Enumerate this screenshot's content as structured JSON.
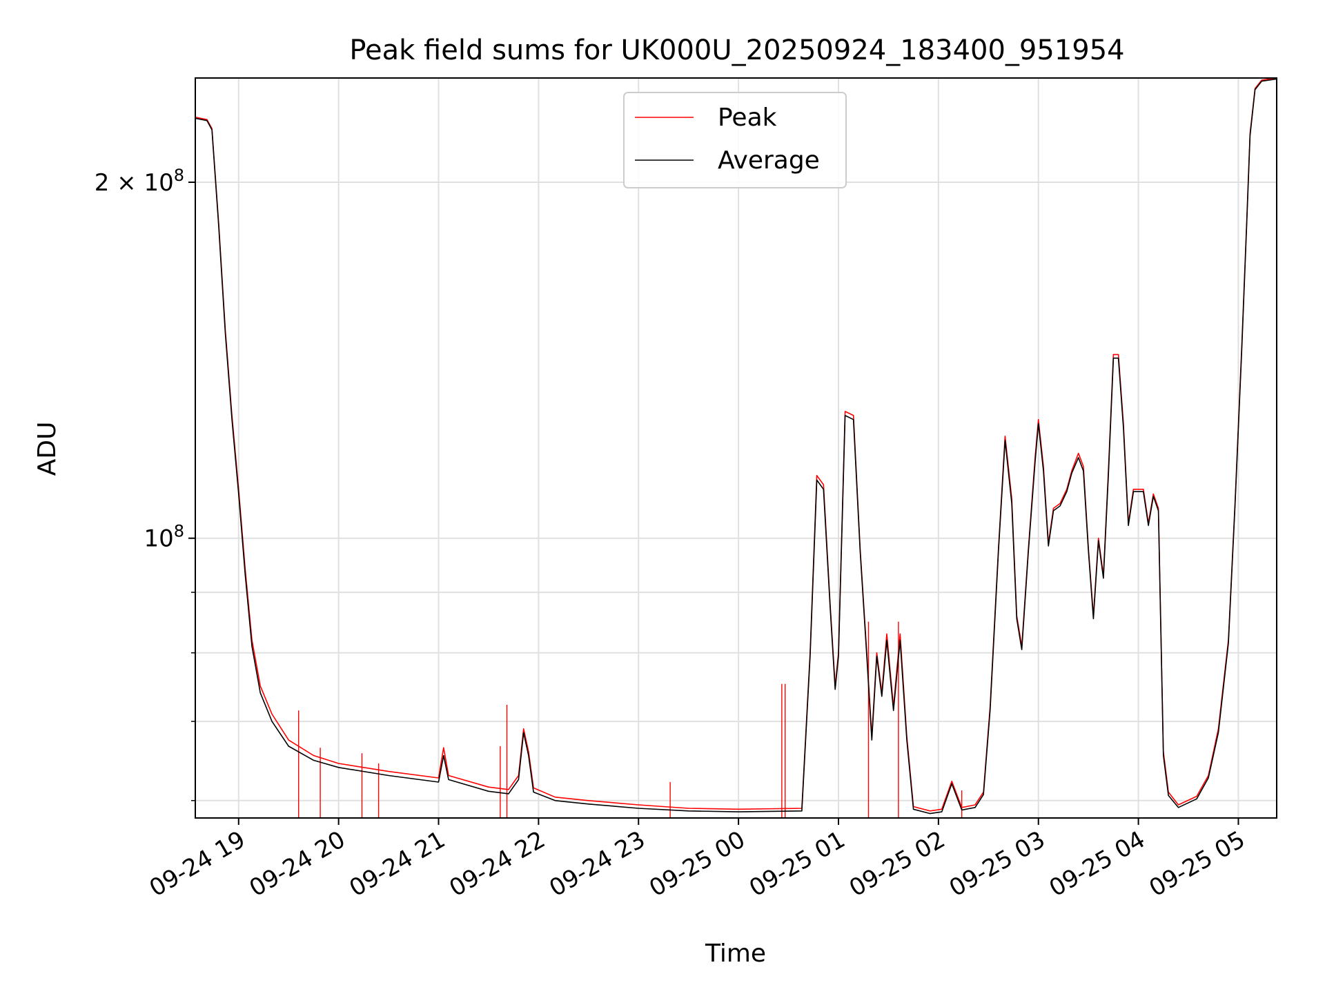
{
  "chart_data": {
    "type": "line",
    "title": "Peak field sums for UK000U_20250924_183400_951954",
    "xlabel": "Time",
    "ylabel": "ADU",
    "y_scale": "log",
    "grid": true,
    "legend_position": "upper center",
    "x_tick_labels": [
      "09-24 19",
      "09-24 20",
      "09-24 21",
      "09-24 22",
      "09-24 23",
      "09-25 00",
      "09-25 01",
      "09-25 02",
      "09-25 03",
      "09-25 04",
      "09-25 05"
    ],
    "x_tick_times": [
      "2025-09-24 19:00",
      "2025-09-24 20:00",
      "2025-09-24 21:00",
      "2025-09-24 22:00",
      "2025-09-24 23:00",
      "2025-09-25 00:00",
      "2025-09-25 01:00",
      "2025-09-25 02:00",
      "2025-09-25 03:00",
      "2025-09-25 04:00",
      "2025-09-25 05:00"
    ],
    "xlim": [
      "2025-09-24 18:34",
      "2025-09-25 05:23"
    ],
    "ylim": [
      58000000,
      245000000
    ],
    "y_major_ticks": [
      {
        "value": 100000000,
        "mantissa": "",
        "base": "10",
        "exp": "8"
      },
      {
        "value": 200000000,
        "mantissa": "2 × ",
        "base": "10",
        "exp": "8"
      }
    ],
    "y_minor_ticks": [
      60000000,
      70000000,
      80000000,
      90000000
    ],
    "series": [
      {
        "name": "Peak",
        "color": "#ff0000",
        "points": [
          [
            "2025-09-24 18:34",
            227000000
          ],
          [
            "2025-09-24 18:41",
            226000000
          ],
          [
            "2025-09-24 18:44",
            222000000
          ],
          [
            "2025-09-24 18:48",
            185000000
          ],
          [
            "2025-09-24 18:52",
            150000000
          ],
          [
            "2025-09-24 18:56",
            127000000
          ],
          [
            "2025-09-24 19:00",
            110000000
          ],
          [
            "2025-09-24 19:04",
            94000000
          ],
          [
            "2025-09-24 19:08",
            82000000
          ],
          [
            "2025-09-24 19:13",
            75000000
          ],
          [
            "2025-09-24 19:20",
            71000000
          ],
          [
            "2025-09-24 19:30",
            67500000
          ],
          [
            "2025-09-24 19:45",
            65500000
          ],
          [
            "2025-09-24 20:00",
            64500000
          ],
          [
            "2025-09-24 20:30",
            63500000
          ],
          [
            "2025-09-24 21:00",
            62700000
          ],
          [
            "2025-09-24 21:03",
            66500000
          ],
          [
            "2025-09-24 21:06",
            63000000
          ],
          [
            "2025-09-24 21:30",
            61600000
          ],
          [
            "2025-09-24 21:42",
            61300000
          ],
          [
            "2025-09-24 21:48",
            63000000
          ],
          [
            "2025-09-24 21:51",
            69000000
          ],
          [
            "2025-09-24 21:54",
            66000000
          ],
          [
            "2025-09-24 21:57",
            61500000
          ],
          [
            "2025-09-24 22:10",
            60400000
          ],
          [
            "2025-09-24 22:30",
            60000000
          ],
          [
            "2025-09-24 23:00",
            59500000
          ],
          [
            "2025-09-24 23:30",
            59100000
          ],
          [
            "2025-09-25 00:00",
            59000000
          ],
          [
            "2025-09-25 00:38",
            59100000
          ],
          [
            "2025-09-25 00:43",
            80000000
          ],
          [
            "2025-09-25 00:47",
            113000000
          ],
          [
            "2025-09-25 00:51",
            111000000
          ],
          [
            "2025-09-25 00:55",
            88000000
          ],
          [
            "2025-09-25 00:58",
            75000000
          ],
          [
            "2025-09-25 01:00",
            80000000
          ],
          [
            "2025-09-25 01:04",
            128000000
          ],
          [
            "2025-09-25 01:09",
            127000000
          ],
          [
            "2025-09-25 01:13",
            98000000
          ],
          [
            "2025-09-25 01:17",
            80000000
          ],
          [
            "2025-09-25 01:20",
            68000000
          ],
          [
            "2025-09-25 01:23",
            80000000
          ],
          [
            "2025-09-25 01:26",
            74000000
          ],
          [
            "2025-09-25 01:29",
            83000000
          ],
          [
            "2025-09-25 01:33",
            72000000
          ],
          [
            "2025-09-25 01:37",
            83000000
          ],
          [
            "2025-09-25 01:41",
            68000000
          ],
          [
            "2025-09-25 01:45",
            59300000
          ],
          [
            "2025-09-25 01:55",
            58800000
          ],
          [
            "2025-09-25 02:02",
            59000000
          ],
          [
            "2025-09-25 02:08",
            62300000
          ],
          [
            "2025-09-25 02:14",
            59200000
          ],
          [
            "2025-09-25 02:22",
            59500000
          ],
          [
            "2025-09-25 02:27",
            61000000
          ],
          [
            "2025-09-25 02:31",
            72000000
          ],
          [
            "2025-09-25 02:36",
            98000000
          ],
          [
            "2025-09-25 02:40",
            122000000
          ],
          [
            "2025-09-25 02:44",
            108000000
          ],
          [
            "2025-09-25 02:47",
            86000000
          ],
          [
            "2025-09-25 02:50",
            81000000
          ],
          [
            "2025-09-25 02:54",
            98000000
          ],
          [
            "2025-09-25 02:58",
            117000000
          ],
          [
            "2025-09-25 03:00",
            126000000
          ],
          [
            "2025-09-25 03:03",
            115000000
          ],
          [
            "2025-09-25 03:06",
            99000000
          ],
          [
            "2025-09-25 03:09",
            106000000
          ],
          [
            "2025-09-25 03:13",
            107000000
          ],
          [
            "2025-09-25 03:17",
            110000000
          ],
          [
            "2025-09-25 03:20",
            114000000
          ],
          [
            "2025-09-25 03:24",
            118000000
          ],
          [
            "2025-09-25 03:27",
            115000000
          ],
          [
            "2025-09-25 03:30",
            98000000
          ],
          [
            "2025-09-25 03:33",
            86000000
          ],
          [
            "2025-09-25 03:36",
            100000000
          ],
          [
            "2025-09-25 03:39",
            93000000
          ],
          [
            "2025-09-25 03:42",
            114000000
          ],
          [
            "2025-09-25 03:45",
            143000000
          ],
          [
            "2025-09-25 03:48",
            143000000
          ],
          [
            "2025-09-25 03:51",
            125000000
          ],
          [
            "2025-09-25 03:54",
            103000000
          ],
          [
            "2025-09-25 03:57",
            110000000
          ],
          [
            "2025-09-25 04:00",
            110000000
          ],
          [
            "2025-09-25 04:03",
            110000000
          ],
          [
            "2025-09-25 04:06",
            103000000
          ],
          [
            "2025-09-25 04:09",
            109000000
          ],
          [
            "2025-09-25 04:12",
            106000000
          ],
          [
            "2025-09-25 04:15",
            66000000
          ],
          [
            "2025-09-25 04:18",
            61000000
          ],
          [
            "2025-09-25 04:24",
            59500000
          ],
          [
            "2025-09-25 04:35",
            60500000
          ],
          [
            "2025-09-25 04:42",
            63000000
          ],
          [
            "2025-09-25 04:48",
            69000000
          ],
          [
            "2025-09-25 04:54",
            82000000
          ],
          [
            "2025-09-25 04:58",
            107000000
          ],
          [
            "2025-09-25 05:02",
            145000000
          ],
          [
            "2025-09-25 05:05",
            185000000
          ],
          [
            "2025-09-25 05:07",
            220000000
          ],
          [
            "2025-09-25 05:10",
            240000000
          ],
          [
            "2025-09-25 05:14",
            244000000
          ],
          [
            "2025-09-25 05:23",
            245000000
          ]
        ]
      },
      {
        "name": "Average",
        "color": "#000000",
        "points": [
          [
            "2025-09-24 18:34",
            226500000
          ],
          [
            "2025-09-24 18:41",
            225500000
          ],
          [
            "2025-09-24 18:44",
            221500000
          ],
          [
            "2025-09-24 18:48",
            184000000
          ],
          [
            "2025-09-24 18:52",
            149000000
          ],
          [
            "2025-09-24 18:56",
            126000000
          ],
          [
            "2025-09-24 19:00",
            109000000
          ],
          [
            "2025-09-24 19:04",
            93000000
          ],
          [
            "2025-09-24 19:08",
            81000000
          ],
          [
            "2025-09-24 19:13",
            74000000
          ],
          [
            "2025-09-24 19:20",
            70000000
          ],
          [
            "2025-09-24 19:30",
            66700000
          ],
          [
            "2025-09-24 19:45",
            64900000
          ],
          [
            "2025-09-24 20:00",
            64000000
          ],
          [
            "2025-09-24 20:30",
            63000000
          ],
          [
            "2025-09-24 21:00",
            62200000
          ],
          [
            "2025-09-24 21:03",
            65500000
          ],
          [
            "2025-09-24 21:06",
            62500000
          ],
          [
            "2025-09-24 21:30",
            61100000
          ],
          [
            "2025-09-24 21:42",
            60800000
          ],
          [
            "2025-09-24 21:48",
            62500000
          ],
          [
            "2025-09-24 21:51",
            68500000
          ],
          [
            "2025-09-24 21:54",
            65500000
          ],
          [
            "2025-09-24 21:57",
            61000000
          ],
          [
            "2025-09-24 22:10",
            60000000
          ],
          [
            "2025-09-24 22:30",
            59600000
          ],
          [
            "2025-09-24 23:00",
            59100000
          ],
          [
            "2025-09-24 23:30",
            58800000
          ],
          [
            "2025-09-25 00:00",
            58700000
          ],
          [
            "2025-09-25 00:38",
            58800000
          ],
          [
            "2025-09-25 00:43",
            79500000
          ],
          [
            "2025-09-25 00:47",
            112000000
          ],
          [
            "2025-09-25 00:51",
            110000000
          ],
          [
            "2025-09-25 00:55",
            87500000
          ],
          [
            "2025-09-25 00:58",
            74500000
          ],
          [
            "2025-09-25 01:00",
            79500000
          ],
          [
            "2025-09-25 01:04",
            127000000
          ],
          [
            "2025-09-25 01:09",
            126000000
          ],
          [
            "2025-09-25 01:13",
            97500000
          ],
          [
            "2025-09-25 01:17",
            79500000
          ],
          [
            "2025-09-25 01:20",
            67500000
          ],
          [
            "2025-09-25 01:23",
            79500000
          ],
          [
            "2025-09-25 01:26",
            73500000
          ],
          [
            "2025-09-25 01:29",
            82000000
          ],
          [
            "2025-09-25 01:33",
            71500000
          ],
          [
            "2025-09-25 01:37",
            82000000
          ],
          [
            "2025-09-25 01:41",
            67500000
          ],
          [
            "2025-09-25 01:45",
            59000000
          ],
          [
            "2025-09-25 01:55",
            58500000
          ],
          [
            "2025-09-25 02:02",
            58700000
          ],
          [
            "2025-09-25 02:08",
            62000000
          ],
          [
            "2025-09-25 02:14",
            58900000
          ],
          [
            "2025-09-25 02:22",
            59200000
          ],
          [
            "2025-09-25 02:27",
            60700000
          ],
          [
            "2025-09-25 02:31",
            71500000
          ],
          [
            "2025-09-25 02:36",
            97500000
          ],
          [
            "2025-09-25 02:40",
            121000000
          ],
          [
            "2025-09-25 02:44",
            107000000
          ],
          [
            "2025-09-25 02:47",
            85500000
          ],
          [
            "2025-09-25 02:50",
            80500000
          ],
          [
            "2025-09-25 02:54",
            97500000
          ],
          [
            "2025-09-25 02:58",
            116000000
          ],
          [
            "2025-09-25 03:00",
            125000000
          ],
          [
            "2025-09-25 03:03",
            114000000
          ],
          [
            "2025-09-25 03:06",
            98500000
          ],
          [
            "2025-09-25 03:09",
            105500000
          ],
          [
            "2025-09-25 03:13",
            106500000
          ],
          [
            "2025-09-25 03:17",
            109500000
          ],
          [
            "2025-09-25 03:20",
            113500000
          ],
          [
            "2025-09-25 03:24",
            117000000
          ],
          [
            "2025-09-25 03:27",
            114000000
          ],
          [
            "2025-09-25 03:30",
            97500000
          ],
          [
            "2025-09-25 03:33",
            85500000
          ],
          [
            "2025-09-25 03:36",
            99500000
          ],
          [
            "2025-09-25 03:39",
            92500000
          ],
          [
            "2025-09-25 03:42",
            113000000
          ],
          [
            "2025-09-25 03:45",
            142000000
          ],
          [
            "2025-09-25 03:48",
            142000000
          ],
          [
            "2025-09-25 03:51",
            124000000
          ],
          [
            "2025-09-25 03:54",
            102500000
          ],
          [
            "2025-09-25 03:57",
            109500000
          ],
          [
            "2025-09-25 04:00",
            109500000
          ],
          [
            "2025-09-25 04:03",
            109500000
          ],
          [
            "2025-09-25 04:06",
            102500000
          ],
          [
            "2025-09-25 04:09",
            108500000
          ],
          [
            "2025-09-25 04:12",
            105500000
          ],
          [
            "2025-09-25 04:15",
            65500000
          ],
          [
            "2025-09-25 04:18",
            60600000
          ],
          [
            "2025-09-25 04:24",
            59200000
          ],
          [
            "2025-09-25 04:35",
            60200000
          ],
          [
            "2025-09-25 04:42",
            62700000
          ],
          [
            "2025-09-25 04:48",
            68500000
          ],
          [
            "2025-09-25 04:54",
            81500000
          ],
          [
            "2025-09-25 04:58",
            106500000
          ],
          [
            "2025-09-25 05:02",
            144000000
          ],
          [
            "2025-09-25 05:05",
            184000000
          ],
          [
            "2025-09-25 05:07",
            219000000
          ],
          [
            "2025-09-25 05:10",
            239500000
          ],
          [
            "2025-09-25 05:14",
            243500000
          ],
          [
            "2025-09-25 05:23",
            244500000
          ]
        ]
      }
    ],
    "peak_spikes": [
      [
        "2025-09-24 19:36",
        71500000
      ],
      [
        "2025-09-24 19:49",
        66500000
      ],
      [
        "2025-09-24 20:14",
        65800000
      ],
      [
        "2025-09-24 20:24",
        64500000
      ],
      [
        "2025-09-24 21:37",
        66700000
      ],
      [
        "2025-09-24 21:41",
        72300000
      ],
      [
        "2025-09-24 23:19",
        62200000
      ],
      [
        "2025-09-25 00:26",
        75300000
      ],
      [
        "2025-09-25 00:28",
        75300000
      ],
      [
        "2025-09-25 01:18",
        85000000
      ],
      [
        "2025-09-25 01:36",
        85000000
      ],
      [
        "2025-09-25 02:14",
        61200000
      ]
    ]
  }
}
